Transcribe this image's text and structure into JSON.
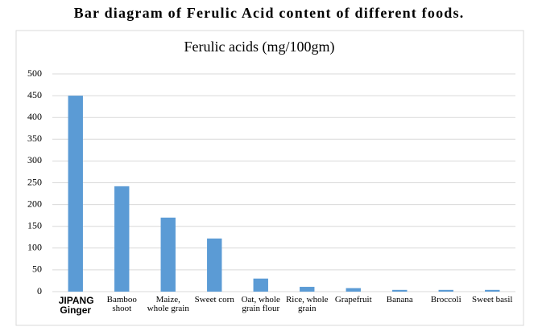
{
  "chart_data": {
    "type": "bar",
    "title": "Bar diagram of Ferulic Acid content of different foods.",
    "subtitle": "Ferulic acids (mg/100gm)",
    "categories": [
      "JIPANG Ginger",
      "Bamboo shoot",
      "Maize, whole grain",
      "Sweet corn",
      "Oat, whole grain flour",
      "Rice, whole grain",
      "Grapefruit",
      "Banana",
      "Broccoli",
      "Sweet basil"
    ],
    "values": [
      450,
      242,
      170,
      122,
      30,
      11,
      8,
      4,
      4,
      4
    ],
    "color": "#5b9bd5",
    "ylim": [
      0,
      500
    ],
    "yticks": [
      0,
      50,
      100,
      150,
      200,
      250,
      300,
      350,
      400,
      450,
      500
    ],
    "grid": true
  }
}
